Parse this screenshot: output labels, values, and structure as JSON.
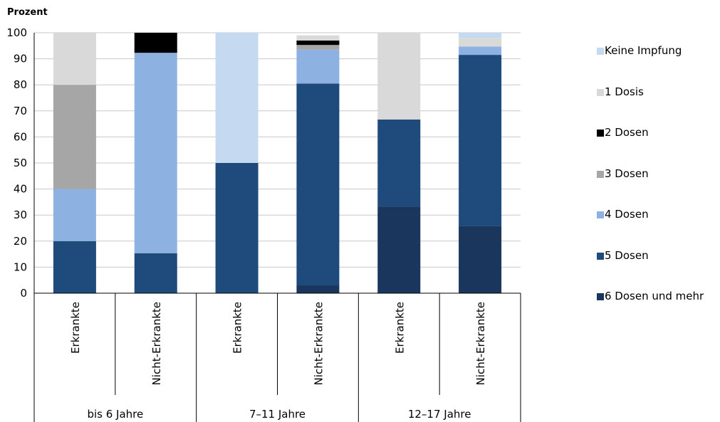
{
  "chart_data": {
    "type": "bar",
    "stacked": true,
    "title": "",
    "ylabel": "Prozent",
    "ylim": [
      0,
      100
    ],
    "yticks": [
      0,
      10,
      20,
      30,
      40,
      50,
      60,
      70,
      80,
      90,
      100
    ],
    "grid": true,
    "legend_position": "right",
    "categories": [
      "Erkrankte",
      "Nicht-Erkrankte",
      "Erkrankte",
      "Nicht-Erkrankte",
      "Erkrankte",
      "Nicht-Erkrankte"
    ],
    "groups": [
      {
        "label": "bis 6 Jahre",
        "span": 2
      },
      {
        "label": "7–11 Jahre",
        "span": 2
      },
      {
        "label": "12–17 Jahre",
        "span": 2
      }
    ],
    "series": [
      {
        "name": "6 Dosen und mehr",
        "color": "#1b365d",
        "values": [
          0,
          0,
          0,
          3,
          33.3,
          25.7
        ]
      },
      {
        "name": "5 Dosen",
        "color": "#1f4a7c",
        "values": [
          20,
          15.3,
          50,
          77.5,
          33.4,
          65.8
        ]
      },
      {
        "name": "4 Dosen",
        "color": "#8db2e2",
        "values": [
          20,
          77,
          0,
          13,
          0,
          3.2
        ]
      },
      {
        "name": "3 Dosen",
        "color": "#a6a6a6",
        "values": [
          40,
          0,
          0,
          1.8,
          0,
          0
        ]
      },
      {
        "name": "2 Dosen",
        "color": "#000000",
        "values": [
          0,
          7.7,
          0,
          1.7,
          0,
          0
        ]
      },
      {
        "name": "1 Dosis",
        "color": "#d9d9d9",
        "values": [
          20,
          0,
          0,
          2,
          33.3,
          3.3
        ]
      },
      {
        "name": "Keine Impfung",
        "color": "#c5d9f0",
        "values": [
          0,
          0,
          50,
          0,
          0,
          2
        ]
      }
    ],
    "legend_order": [
      "Keine Impfung",
      "1 Dosis",
      "2 Dosen",
      "3 Dosen",
      "4 Dosen",
      "5 Dosen",
      "6 Dosen und mehr"
    ]
  }
}
